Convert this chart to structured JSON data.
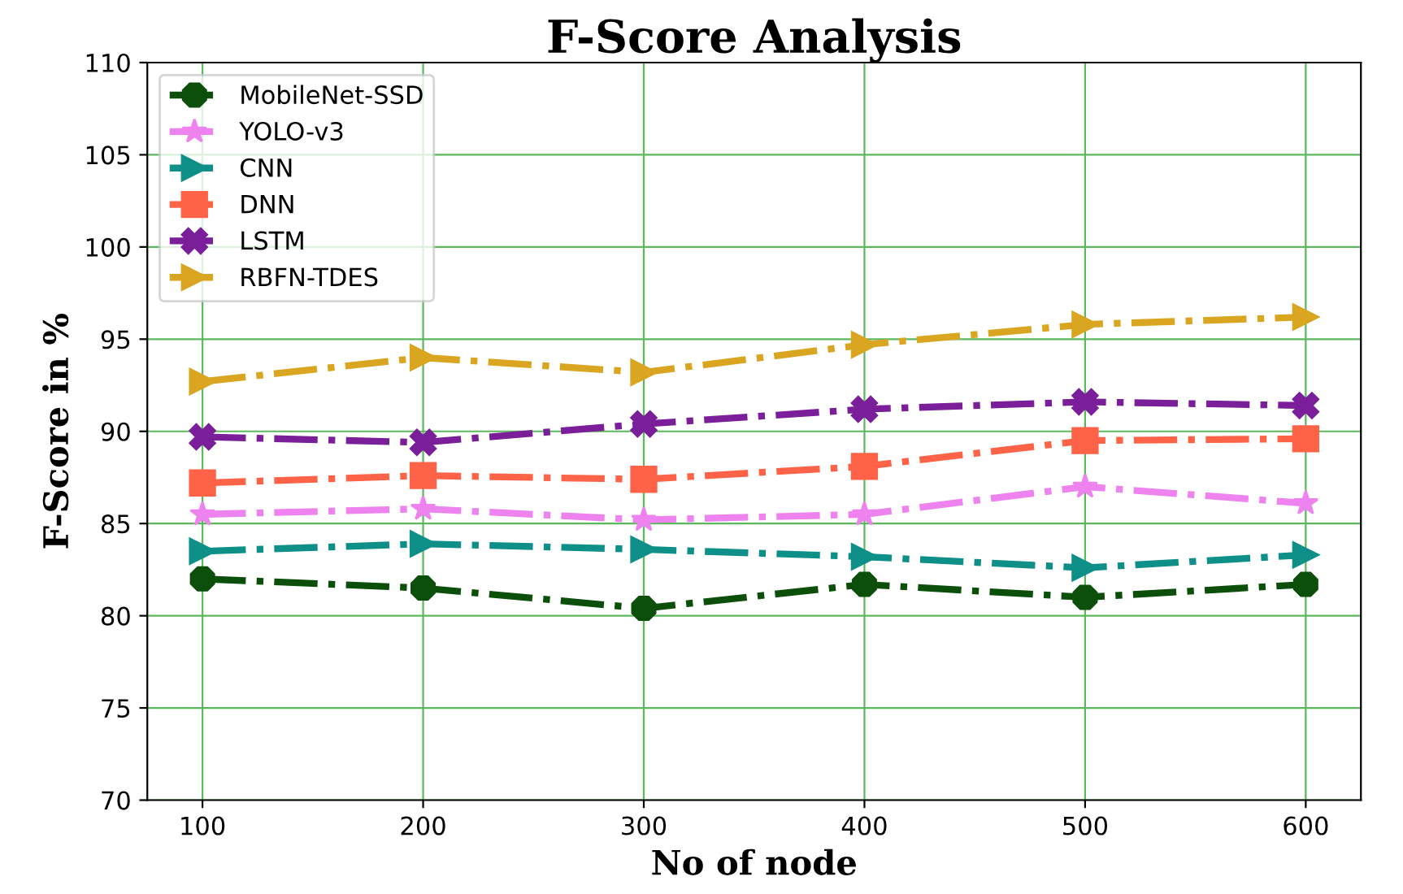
{
  "chart_data": {
    "type": "line",
    "title": "F-Score Analysis",
    "xlabel": "No of node",
    "ylabel": "F-Score in %",
    "x": [
      100,
      200,
      300,
      400,
      500,
      600
    ],
    "series": [
      {
        "name": "MobileNet-SSD",
        "color": "#0b4f0b",
        "marker": "circle",
        "values": [
          82.0,
          81.5,
          80.4,
          81.7,
          81.0,
          81.7
        ]
      },
      {
        "name": "YOLO-v3",
        "color": "#ee82ee",
        "marker": "star",
        "values": [
          85.5,
          85.8,
          85.2,
          85.5,
          87.0,
          86.1
        ]
      },
      {
        "name": "CNN",
        "color": "#0e8f87",
        "marker": "triangle",
        "values": [
          83.5,
          83.9,
          83.6,
          83.2,
          82.6,
          83.3
        ]
      },
      {
        "name": "DNN",
        "color": "#ff6347",
        "marker": "square",
        "values": [
          87.2,
          87.6,
          87.4,
          88.1,
          89.5,
          89.6
        ]
      },
      {
        "name": "LSTM",
        "color": "#7a1e9a",
        "marker": "cross",
        "values": [
          89.7,
          89.4,
          90.4,
          91.2,
          91.6,
          91.4
        ]
      },
      {
        "name": "RBFN-TDES",
        "color": "#daa520",
        "marker": "triangle",
        "values": [
          92.7,
          94.0,
          93.2,
          94.7,
          95.8,
          96.2
        ]
      }
    ],
    "line_style": "dashed",
    "xlim": [
      75,
      625
    ],
    "xticks": [
      100,
      200,
      300,
      400,
      500,
      600
    ],
    "ylim": [
      70,
      110
    ],
    "yticks": [
      70,
      75,
      80,
      85,
      90,
      95,
      100,
      105,
      110
    ],
    "grid": true,
    "legend": "top left"
  }
}
